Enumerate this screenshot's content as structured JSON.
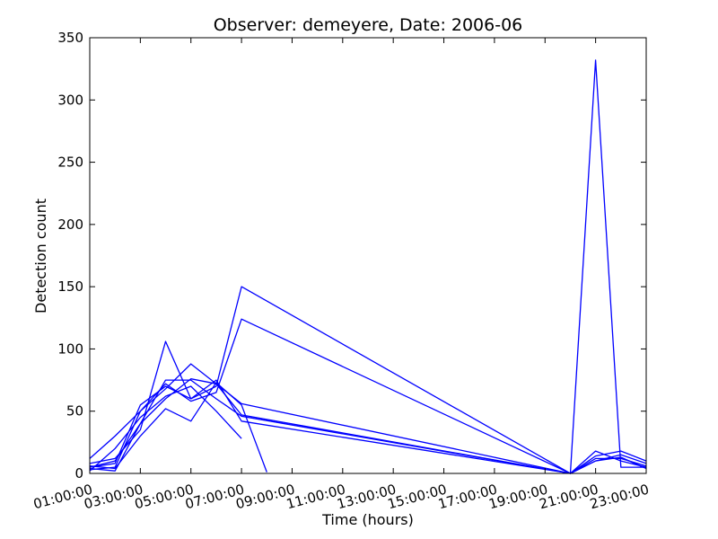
{
  "chart_data": {
    "type": "line",
    "title": "Observer: demeyere, Date: 2006-06",
    "xlabel": "Time (hours)",
    "ylabel": "Detection count",
    "xlim": [
      0,
      22
    ],
    "ylim": [
      0,
      350
    ],
    "grid": false,
    "line_color": "#0000ff",
    "x_ticks": [
      0,
      2,
      4,
      6,
      8,
      10,
      12,
      14,
      16,
      18,
      20,
      22
    ],
    "x_tick_labels": [
      "01:00:00",
      "03:00:00",
      "05:00:00",
      "07:00:00",
      "09:00:00",
      "11:00:00",
      "13:00:00",
      "15:00:00",
      "17:00:00",
      "19:00:00",
      "21:00:00",
      "23:00:00"
    ],
    "y_ticks": [
      0,
      50,
      100,
      150,
      200,
      250,
      300,
      350
    ],
    "y_tick_labels": [
      "0",
      "50",
      "100",
      "150",
      "200",
      "250",
      "300",
      "350"
    ],
    "series": [
      {
        "x": [
          0,
          1,
          2,
          3,
          4,
          5,
          6,
          19,
          20,
          21,
          22
        ],
        "y": [
          5,
          8,
          55,
          70,
          60,
          70,
          150,
          0,
          10,
          15,
          8
        ]
      },
      {
        "x": [
          0,
          1,
          2,
          3,
          4,
          5,
          6,
          19,
          20,
          21,
          22
        ],
        "y": [
          3,
          5,
          50,
          72,
          58,
          65,
          124,
          0,
          12,
          12,
          6
        ]
      },
      {
        "x": [
          0,
          1,
          2,
          3,
          4,
          5,
          6,
          19,
          20,
          21,
          22
        ],
        "y": [
          12,
          30,
          50,
          68,
          88,
          72,
          47,
          0,
          18,
          10,
          5
        ]
      },
      {
        "x": [
          0,
          1,
          2,
          3,
          4,
          5,
          6,
          19,
          20,
          21,
          22
        ],
        "y": [
          5,
          10,
          40,
          60,
          76,
          72,
          56,
          0,
          332,
          5,
          5
        ]
      },
      {
        "x": [
          0,
          1,
          2,
          3,
          4,
          5,
          6,
          19,
          20,
          21,
          22
        ],
        "y": [
          8,
          12,
          35,
          106,
          60,
          75,
          42,
          0,
          14,
          18,
          10
        ]
      },
      {
        "x": [
          0,
          1,
          2,
          3,
          4,
          5,
          6,
          19,
          20,
          21,
          22
        ],
        "y": [
          4,
          2,
          40,
          75,
          75,
          60,
          46,
          0,
          10,
          13,
          4
        ]
      },
      {
        "x": [
          0,
          1,
          2,
          3,
          4,
          5,
          6,
          7
        ],
        "y": [
          6,
          4,
          30,
          52,
          42,
          73,
          55,
          1
        ]
      },
      {
        "x": [
          0,
          1,
          2,
          3,
          4,
          5,
          6
        ],
        "y": [
          2,
          20,
          45,
          62,
          70,
          50,
          28
        ]
      }
    ]
  }
}
